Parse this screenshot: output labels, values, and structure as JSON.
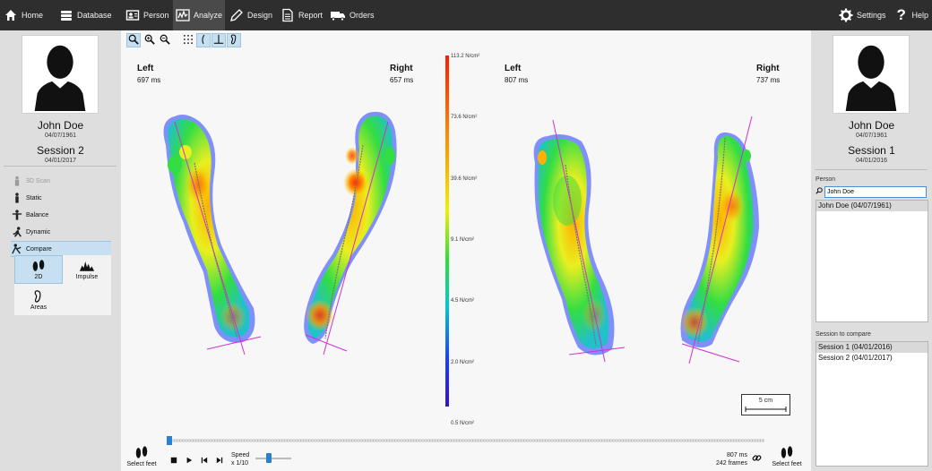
{
  "nav": {
    "items": [
      {
        "label": "Home",
        "icon": "home-icon"
      },
      {
        "label": "Database",
        "icon": "database-icon"
      },
      {
        "label": "Person",
        "icon": "person-card-icon"
      },
      {
        "label": "Analyze",
        "icon": "analyze-icon"
      },
      {
        "label": "Design",
        "icon": "design-icon"
      },
      {
        "label": "Report",
        "icon": "report-icon"
      },
      {
        "label": "Orders",
        "icon": "orders-icon"
      }
    ],
    "active": "Analyze",
    "settings_label": "Settings",
    "help_label": "Help"
  },
  "left_patient": {
    "name": "John Doe",
    "dob": "04/07/1961",
    "session": "Session 2",
    "session_date": "04/01/2017"
  },
  "menu": {
    "items": [
      {
        "label": "3D Scan",
        "icon": "3d-scan-icon",
        "disabled": true
      },
      {
        "label": "Static",
        "icon": "static-icon",
        "disabled": false
      },
      {
        "label": "Balance",
        "icon": "balance-icon",
        "disabled": false
      },
      {
        "label": "Dynamic",
        "icon": "dynamic-icon",
        "disabled": false
      },
      {
        "label": "Compare",
        "icon": "compare-icon",
        "disabled": false,
        "selected": true
      }
    ],
    "sub": [
      {
        "label": "2D",
        "icon": "feet-2d-icon",
        "active": true
      },
      {
        "label": "Impulse",
        "icon": "impulse-icon",
        "active": false
      },
      {
        "label": "Areas",
        "icon": "areas-icon",
        "active": false
      }
    ]
  },
  "comparison": {
    "left": {
      "left_label": "Left",
      "left_ms": "697 ms",
      "right_label": "Right",
      "right_ms": "657 ms"
    },
    "right": {
      "left_label": "Left",
      "left_ms": "807 ms",
      "right_label": "Right",
      "right_ms": "737 ms"
    }
  },
  "color_scale": {
    "ticks": [
      "113.2 N/cm²",
      "73.6 N/cm²",
      "39.6 N/cm²",
      "9.1 N/cm²",
      "4.5 N/cm²",
      "2.0 N/cm²",
      "0.5 N/cm²"
    ]
  },
  "scale_bar": {
    "label": "5 cm"
  },
  "playback": {
    "speed_label": "Speed",
    "speed_value": "x 1/10",
    "time": "807 ms",
    "frames": "242 frames",
    "select_feet_left": "Select feet",
    "select_feet_right": "Select feet"
  },
  "right_patient": {
    "name": "John Doe",
    "dob": "04/07/1961",
    "session": "Session 1",
    "session_date": "04/01/2016"
  },
  "person_search": {
    "label": "Person",
    "value": "John Doe",
    "results": [
      "John Doe (04/07/1961)"
    ]
  },
  "session_compare": {
    "label": "Session to compare",
    "items": [
      "Session 1 (04/01/2016)",
      "Session 2 (04/01/2017)"
    ],
    "selected_index": 0
  },
  "colors": {
    "topbar": "#2e2e2e",
    "accent": "#c6dff1",
    "axis_line": "#d030d0"
  }
}
